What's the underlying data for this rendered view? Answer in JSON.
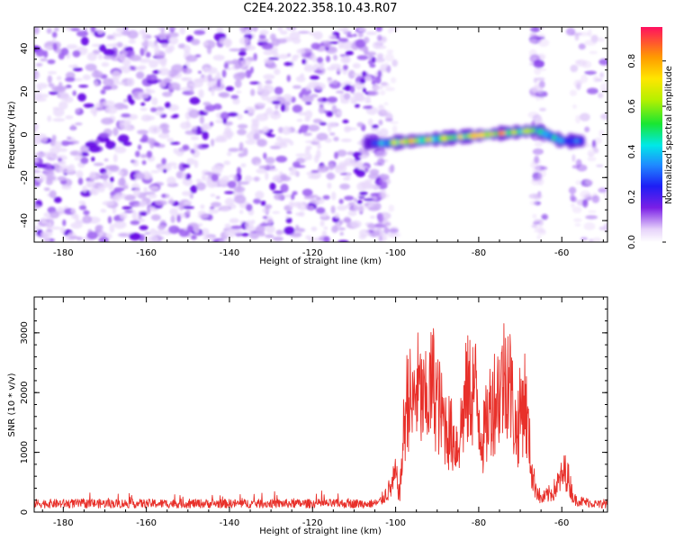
{
  "title": "C2E4.2022.358.10.43.R07",
  "chart_data": [
    {
      "type": "heatmap",
      "xlabel": "Height of straight line (km)",
      "ylabel": "Frequency (Hz)",
      "xlim": [
        -187,
        -49
      ],
      "ylim": [
        -50,
        50
      ],
      "x_ticks": [
        -180,
        -160,
        -140,
        -120,
        -100,
        -80,
        -60
      ],
      "y_ticks": [
        -40,
        -20,
        0,
        20,
        40
      ],
      "noise_region": {
        "x": [
          -187,
          -104
        ],
        "y": [
          -50,
          50
        ]
      },
      "sparse_noise_region": {
        "x": [
          -104,
          -49
        ],
        "y": [
          -50,
          50
        ]
      },
      "signal_track": {
        "points": [
          {
            "x": -107,
            "freq": -4,
            "amplitude": 0.35
          },
          {
            "x": -102,
            "freq": -4,
            "amplitude": 0.55
          },
          {
            "x": -96,
            "freq": -3,
            "amplitude": 0.85
          },
          {
            "x": -90,
            "freq": -2,
            "amplitude": 0.6
          },
          {
            "x": -84,
            "freq": -1,
            "amplitude": 0.7
          },
          {
            "x": -78,
            "freq": 0,
            "amplitude": 0.9
          },
          {
            "x": -72,
            "freq": 1,
            "amplitude": 0.75
          },
          {
            "x": -66,
            "freq": 2,
            "amplitude": 0.55
          },
          {
            "x": -60,
            "freq": -3,
            "amplitude": 0.4
          },
          {
            "x": -55,
            "freq": -3,
            "amplitude": 0.3
          }
        ]
      },
      "colorbar": {
        "label": "Normalized spectral amplitude",
        "ticks": [
          0.0,
          0.2,
          0.4,
          0.6,
          0.8
        ],
        "tick_labels": [
          "0.0",
          "0.2",
          "0.4",
          "0.6",
          "0.8"
        ],
        "range": [
          0,
          0.95
        ]
      }
    },
    {
      "type": "line",
      "xlabel": "Height of straight line (km)",
      "ylabel": "SNR (10 * v/v)",
      "xlim": [
        -187,
        -49
      ],
      "ylim": [
        0,
        3600
      ],
      "x_ticks": [
        -180,
        -160,
        -140,
        -120,
        -100,
        -80,
        -60
      ],
      "y_ticks": [
        0,
        1000,
        2000,
        3000
      ],
      "color": "#e8302a",
      "noise_floor": 150,
      "series": [
        {
          "name": "SNR",
          "x": [
            -187,
            -160,
            -130,
            -110,
            -104,
            -101,
            -100,
            -99,
            -98,
            -97,
            -96,
            -95,
            -93,
            -91,
            -89,
            -87,
            -85,
            -83,
            -81,
            -79,
            -77,
            -75,
            -73,
            -71,
            -69,
            -67,
            -65,
            -62,
            -59,
            -57,
            -55,
            -52,
            -49
          ],
          "y": [
            150,
            150,
            150,
            160,
            220,
            600,
            900,
            400,
            2000,
            2900,
            2400,
            3000,
            2500,
            3100,
            2300,
            1900,
            1600,
            2800,
            3000,
            1700,
            2600,
            2900,
            3500,
            1900,
            2800,
            800,
            300,
            500,
            1000,
            300,
            250,
            200,
            150
          ]
        }
      ]
    }
  ]
}
